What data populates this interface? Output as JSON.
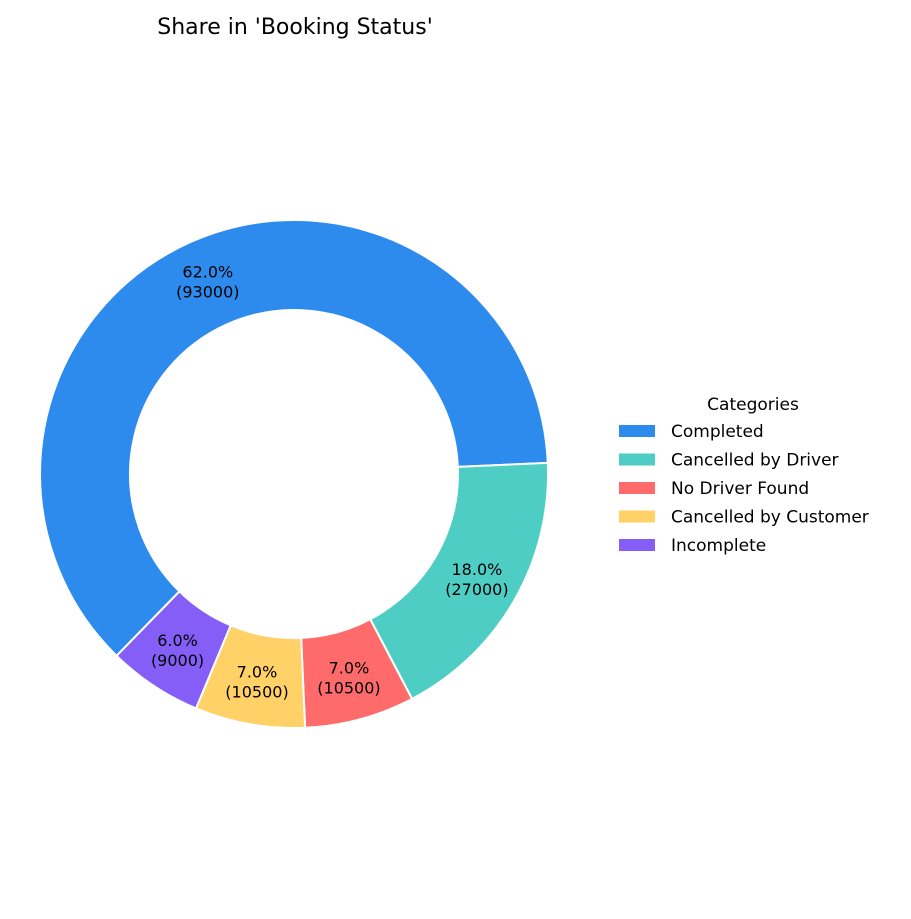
{
  "chart_data": {
    "type": "pie",
    "style": "donut",
    "title": "Share in 'Booking Status'",
    "legend_title": "Categories",
    "legend_position": "right",
    "slices": [
      {
        "label": "Completed",
        "value": 93000,
        "percent": 62.0,
        "percent_text": "62.0%",
        "value_text": "(93000)",
        "color": "#2E8BEE"
      },
      {
        "label": "Cancelled by Driver",
        "value": 27000,
        "percent": 18.0,
        "percent_text": "18.0%",
        "value_text": "(27000)",
        "color": "#4ECDC4"
      },
      {
        "label": "No Driver Found",
        "value": 10500,
        "percent": 7.0,
        "percent_text": "7.0%",
        "value_text": "(10500)",
        "color": "#FF6B6B"
      },
      {
        "label": "Cancelled by Customer",
        "value": 10500,
        "percent": 7.0,
        "percent_text": "7.0%",
        "value_text": "(10500)",
        "color": "#FFD166"
      },
      {
        "label": "Incomplete",
        "value": 9000,
        "percent": 6.0,
        "percent_text": "6.0%",
        "value_text": "(9000)",
        "color": "#845EF7"
      }
    ]
  }
}
